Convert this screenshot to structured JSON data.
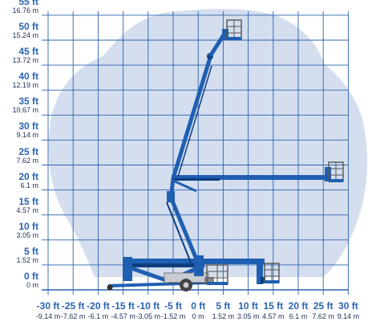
{
  "colors": {
    "grid": "#2a63b0",
    "envelope": "#d4deee",
    "lift_blue": "#1f5fb2",
    "label_ft": "#2a63b0",
    "label_m": "#1a2d5a"
  },
  "y_axis": {
    "ft": [
      "55 ft",
      "50 ft",
      "45 ft",
      "40 ft",
      "35 ft",
      "30 ft",
      "25 ft",
      "20 ft",
      "15 ft",
      "10 ft",
      "5 ft",
      "0 ft"
    ],
    "m": [
      "16.76 m",
      "15.24 m",
      "13.72 m",
      "12.19 m",
      "10.67 m",
      "9.14 m",
      "7.62 m",
      "6.1 m",
      "4.57 m",
      "3.05 m",
      "1.52 m",
      "0 m"
    ]
  },
  "x_axis": {
    "ft": [
      "-30 ft",
      "-25 ft",
      "-20 ft",
      "-15 ft",
      "-10 ft",
      "-5 ft",
      "0 ft",
      "5 ft",
      "10 ft",
      "15 ft",
      "20 ft",
      "25 ft",
      "30 ft"
    ],
    "m": [
      "-9.14 m",
      "-7.62 m",
      "-6.1 m",
      "-4.57 m",
      "-3.05 m",
      "-1.52 m",
      "0 m",
      "1.52 m",
      "3.05 m",
      "4.57 m",
      "6.1 m",
      "7.62 m",
      "9.14 m"
    ]
  }
}
